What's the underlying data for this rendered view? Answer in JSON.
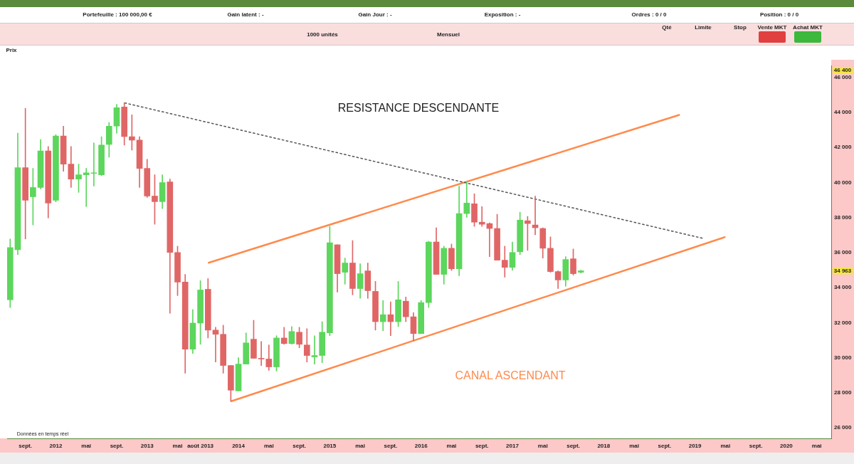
{
  "chart_data": {
    "type": "candlestick",
    "x": [
      "2011-07",
      "2011-08",
      "2011-09",
      "2011-10",
      "2011-11",
      "2011-12",
      "2012-01",
      "2012-02",
      "2012-03",
      "2012-04",
      "2012-05",
      "2012-06",
      "2012-07",
      "2012-08",
      "2012-09",
      "2012-10",
      "2012-11",
      "2012-12",
      "2013-01",
      "2013-02",
      "2013-03",
      "2013-04",
      "2013-05",
      "2013-06",
      "2013-07",
      "2013-08",
      "2013-09",
      "2013-10",
      "2013-11",
      "2013-12",
      "2014-01",
      "2014-02",
      "2014-03",
      "2014-04",
      "2014-05",
      "2014-06",
      "2014-07",
      "2014-08",
      "2014-09",
      "2014-10",
      "2014-11",
      "2014-12",
      "2015-01",
      "2015-02",
      "2015-03",
      "2015-04",
      "2015-05",
      "2015-06",
      "2015-07",
      "2015-08",
      "2015-09",
      "2015-10",
      "2015-11",
      "2015-12",
      "2016-01",
      "2016-02",
      "2016-03",
      "2016-04",
      "2016-05",
      "2016-06",
      "2016-07",
      "2016-08",
      "2016-09",
      "2016-10",
      "2016-11",
      "2016-12",
      "2017-01",
      "2017-02",
      "2017-03",
      "2017-04",
      "2017-05",
      "2017-06",
      "2017-07",
      "2017-08",
      "2017-09",
      "2017-10"
    ],
    "ohlc": [
      [
        33310,
        36780,
        32870,
        36290
      ],
      [
        36170,
        42820,
        35890,
        40850
      ],
      [
        40850,
        44230,
        36780,
        38990
      ],
      [
        39190,
        40810,
        37580,
        39720
      ],
      [
        39720,
        42460,
        39640,
        41810
      ],
      [
        41810,
        42060,
        37980,
        38830
      ],
      [
        38990,
        42740,
        38900,
        42660
      ],
      [
        42660,
        43220,
        40640,
        41050
      ],
      [
        41050,
        42060,
        39720,
        40200
      ],
      [
        40200,
        41050,
        39440,
        40440
      ],
      [
        40440,
        40810,
        38630,
        40560
      ],
      [
        40520,
        42260,
        39800,
        40560
      ],
      [
        40440,
        42620,
        40400,
        42140
      ],
      [
        42180,
        43430,
        41450,
        43220
      ],
      [
        43220,
        44470,
        42820,
        44270
      ],
      [
        44310,
        44550,
        42140,
        42620
      ],
      [
        42620,
        43870,
        41850,
        42420
      ],
      [
        42420,
        42620,
        39720,
        40810
      ],
      [
        40810,
        41330,
        39150,
        39230
      ],
      [
        39230,
        40440,
        37620,
        38910
      ],
      [
        38910,
        40440,
        38510,
        40000
      ],
      [
        40040,
        40200,
        32540,
        36010
      ],
      [
        36010,
        36370,
        33550,
        34320
      ],
      [
        34320,
        34760,
        29120,
        30490
      ],
      [
        30490,
        32750,
        30250,
        31980
      ],
      [
        31980,
        34400,
        30770,
        33870
      ],
      [
        33910,
        34520,
        31130,
        31580
      ],
      [
        31580,
        31740,
        29760,
        31340
      ],
      [
        31340,
        31860,
        29120,
        29560
      ],
      [
        29560,
        29560,
        27510,
        28150
      ],
      [
        28110,
        30010,
        28110,
        29640
      ],
      [
        29640,
        31420,
        29640,
        30850
      ],
      [
        31060,
        32140,
        29970,
        29970
      ],
      [
        29970,
        30930,
        29560,
        29930
      ],
      [
        29930,
        30730,
        29280,
        29480
      ],
      [
        29480,
        31260,
        29240,
        31130
      ],
      [
        31130,
        31740,
        30770,
        30810
      ],
      [
        30810,
        31780,
        30770,
        31500
      ],
      [
        31460,
        31740,
        30570,
        30770
      ],
      [
        30730,
        31660,
        29760,
        30130
      ],
      [
        30050,
        31260,
        29640,
        30130
      ],
      [
        30130,
        32060,
        29720,
        31460
      ],
      [
        31420,
        37500,
        31260,
        36570
      ],
      [
        36450,
        36450,
        33750,
        34800
      ],
      [
        34880,
        35690,
        34200,
        35410
      ],
      [
        35410,
        36690,
        33590,
        33950
      ],
      [
        33950,
        35370,
        33390,
        34800
      ],
      [
        34960,
        35410,
        33390,
        33830
      ],
      [
        33790,
        34360,
        31580,
        32060
      ],
      [
        32060,
        33270,
        31540,
        32460
      ],
      [
        32460,
        33190,
        31260,
        32060
      ],
      [
        32060,
        34360,
        31780,
        33310
      ],
      [
        33230,
        33470,
        32060,
        32340
      ],
      [
        32340,
        32580,
        30970,
        31380
      ],
      [
        31380,
        33270,
        31380,
        33150
      ],
      [
        33150,
        36650,
        32870,
        36610
      ],
      [
        36610,
        37420,
        34760,
        34760
      ],
      [
        34760,
        36370,
        34200,
        36250
      ],
      [
        36250,
        36490,
        34980,
        35080
      ],
      [
        35080,
        39800,
        34680,
        38230
      ],
      [
        38230,
        40040,
        38020,
        38830
      ],
      [
        38790,
        39360,
        37500,
        37740
      ],
      [
        37740,
        38630,
        37500,
        37620
      ],
      [
        37660,
        37700,
        35770,
        37380
      ],
      [
        37380,
        38190,
        35570,
        35570
      ],
      [
        35570,
        36370,
        34600,
        35160
      ],
      [
        35160,
        36610,
        35000,
        36010
      ],
      [
        36050,
        38310,
        35890,
        37860
      ],
      [
        37820,
        38070,
        36130,
        37660
      ],
      [
        37580,
        39230,
        37020,
        37420
      ],
      [
        37380,
        37420,
        35690,
        36250
      ],
      [
        36250,
        36900,
        34880,
        34920
      ],
      [
        34920,
        34960,
        33950,
        34440
      ],
      [
        34440,
        35770,
        34080,
        35610
      ],
      [
        35650,
        36210,
        34720,
        34800
      ],
      [
        34880,
        35000,
        34840,
        34963
      ]
    ],
    "colors": [
      "#5cd65c",
      "#5cd65c",
      "#e06666",
      "#5cd65c",
      "#5cd65c",
      "#e06666",
      "#5cd65c",
      "#e06666",
      "#e06666",
      "#5cd65c",
      "#5cd65c",
      "#5cd65c",
      "#5cd65c",
      "#5cd65c",
      "#5cd65c",
      "#e06666",
      "#e06666",
      "#e06666",
      "#e06666",
      "#e06666",
      "#5cd65c",
      "#e06666",
      "#e06666",
      "#e06666",
      "#5cd65c",
      "#5cd65c",
      "#e06666",
      "#e06666",
      "#e06666",
      "#e06666",
      "#5cd65c",
      "#5cd65c",
      "#e06666",
      "#e06666",
      "#e06666",
      "#5cd65c",
      "#e06666",
      "#5cd65c",
      "#e06666",
      "#e06666",
      "#5cd65c",
      "#5cd65c",
      "#5cd65c",
      "#e06666",
      "#5cd65c",
      "#e06666",
      "#5cd65c",
      "#e06666",
      "#e06666",
      "#5cd65c",
      "#e06666",
      "#5cd65c",
      "#e06666",
      "#e06666",
      "#5cd65c",
      "#5cd65c",
      "#e06666",
      "#5cd65c",
      "#e06666",
      "#5cd65c",
      "#5cd65c",
      "#e06666",
      "#e06666",
      "#e06666",
      "#e06666",
      "#e06666",
      "#5cd65c",
      "#5cd65c",
      "#e06666",
      "#e06666",
      "#e06666",
      "#e06666",
      "#e06666",
      "#5cd65c",
      "#e06666",
      "#5cd65c"
    ],
    "series": [
      {
        "type": "line",
        "color": "#555555",
        "line_style": "dashed",
        "x": [
          "2012-10",
          "2019-02"
        ],
        "values": [
          44550,
          36820
        ]
      },
      {
        "type": "line",
        "color": "#ff8a4c",
        "line_style": "solid",
        "x": [
          "2013-09",
          "2018-11"
        ],
        "values": [
          35410,
          43870
        ]
      },
      {
        "type": "line",
        "color": "#ff8a4c",
        "line_style": "solid",
        "x": [
          "2013-12",
          "2019-05"
        ],
        "values": [
          27510,
          36900
        ]
      }
    ],
    "xlim": [
      "2011-06-19",
      "2020-06-28"
    ],
    "xticks": [
      {
        "value": "2011-09",
        "label": "sept."
      },
      {
        "value": "2012-01",
        "label": "2012"
      },
      {
        "value": "2012-05",
        "label": "mai"
      },
      {
        "value": "2012-09",
        "label": "sept."
      },
      {
        "value": "2013-01",
        "label": "2013"
      },
      {
        "value": "2013-05",
        "label": "mai"
      },
      {
        "value": "2013-08",
        "label": "août 2013"
      },
      {
        "value": "2014-01",
        "label": "2014"
      },
      {
        "value": "2014-05",
        "label": "mai"
      },
      {
        "value": "2014-09",
        "label": "sept."
      },
      {
        "value": "2015-01",
        "label": "2015"
      },
      {
        "value": "2015-05",
        "label": "mai"
      },
      {
        "value": "2015-09",
        "label": "sept."
      },
      {
        "value": "2016-01",
        "label": "2016"
      },
      {
        "value": "2016-05",
        "label": "mai"
      },
      {
        "value": "2016-09",
        "label": "sept."
      },
      {
        "value": "2017-01",
        "label": "2017"
      },
      {
        "value": "2017-05",
        "label": "mai"
      },
      {
        "value": "2017-09",
        "label": "sept."
      },
      {
        "value": "2018-01",
        "label": "2018"
      },
      {
        "value": "2018-05",
        "label": "mai"
      },
      {
        "value": "2018-09",
        "label": "sept."
      },
      {
        "value": "2019-01",
        "label": "2019"
      },
      {
        "value": "2019-05",
        "label": "mai"
      },
      {
        "value": "2019-09",
        "label": "sept."
      },
      {
        "value": "2020-01",
        "label": "2020"
      },
      {
        "value": "2020-05",
        "label": "mai"
      }
    ],
    "ylim": [
      25400,
      46650
    ],
    "yticks": [
      {
        "value": 26000,
        "label": "26 000"
      },
      {
        "value": 28000,
        "label": "28 000"
      },
      {
        "value": 30000,
        "label": "30 000"
      },
      {
        "value": 32000,
        "label": "32 000"
      },
      {
        "value": 34000,
        "label": "34 000"
      },
      {
        "value": 36000,
        "label": "36 000"
      },
      {
        "value": 38000,
        "label": "38 000"
      },
      {
        "value": 40000,
        "label": "40 000"
      },
      {
        "value": 42000,
        "label": "42 000"
      },
      {
        "value": 44000,
        "label": "44 000"
      },
      {
        "value": 46000,
        "label": "46 000"
      }
    ],
    "legend": false,
    "grid": false,
    "annotations": [
      "Portefeuille : 100 000,00 €",
      "Gain latent : -",
      "Gain Jour : -",
      "Exposition : -",
      "Ordres : 0 / 0",
      "Position : 0 / 0",
      "1000 unités",
      "Mensuel",
      "Qté",
      "Limite",
      "Stop",
      "Vente MKT",
      "Achat MKT",
      "Prix",
      "Données en temps réel",
      "RESISTANCE DESCENDANTE",
      "CANAL ASCENDANT",
      {
        "text": "46 400",
        "y": 46400
      },
      {
        "text": "34 963",
        "y": 34963
      }
    ]
  }
}
